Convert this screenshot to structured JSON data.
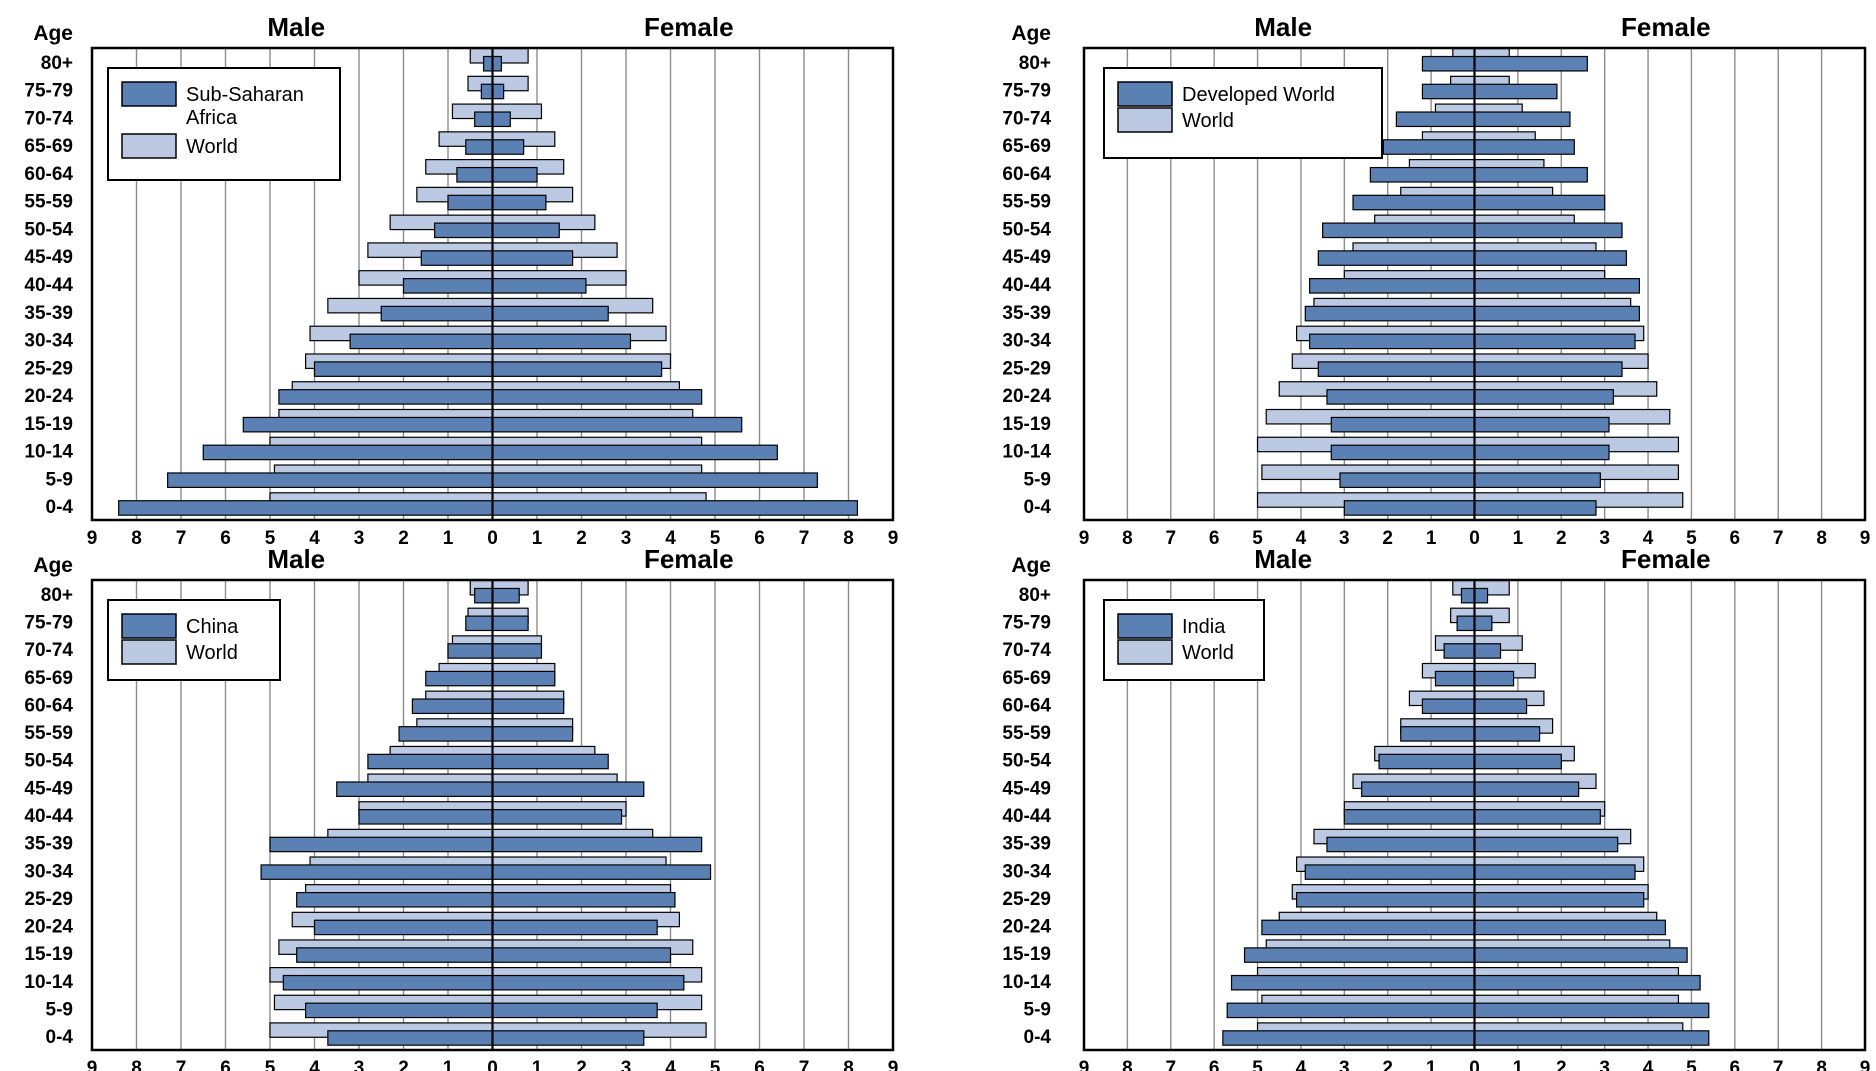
{
  "headers": {
    "male": "Male",
    "female": "Female",
    "age": "Age"
  },
  "age_groups": [
    "80+",
    "75-79",
    "70-74",
    "65-69",
    "60-64",
    "55-59",
    "50-54",
    "45-49",
    "40-44",
    "35-39",
    "30-34",
    "25-29",
    "20-24",
    "15-19",
    "10-14",
    "5-9",
    "0-4"
  ],
  "x_ticks": [
    "9",
    "8",
    "7",
    "6",
    "5",
    "4",
    "3",
    "2",
    "1",
    "0",
    "1",
    "2",
    "3",
    "4",
    "5",
    "6",
    "7",
    "8",
    "9"
  ],
  "colors": {
    "region": "#5b80b4",
    "world": "#bcc9e3",
    "grid": "#8c8c8c",
    "border": "#000000"
  },
  "world": {
    "male": [
      0.5,
      0.55,
      0.9,
      1.2,
      1.5,
      1.7,
      2.3,
      2.8,
      3.0,
      3.7,
      4.1,
      4.2,
      4.5,
      4.8,
      5.0,
      4.9,
      5.0
    ],
    "female": [
      0.8,
      0.8,
      1.1,
      1.4,
      1.6,
      1.8,
      2.3,
      2.8,
      3.0,
      3.6,
      3.9,
      4.0,
      4.2,
      4.5,
      4.7,
      4.7,
      4.8
    ]
  },
  "chart_data": [
    {
      "type": "bar",
      "legend": [
        "Sub-Saharan Africa",
        "World"
      ],
      "categories": [
        "80+",
        "75-79",
        "70-74",
        "65-69",
        "60-64",
        "55-59",
        "50-54",
        "45-49",
        "40-44",
        "35-39",
        "30-34",
        "25-29",
        "20-24",
        "15-19",
        "10-14",
        "5-9",
        "0-4"
      ],
      "xlim": [
        -9,
        9
      ],
      "series": [
        {
          "name": "Sub-Saharan Africa",
          "male": [
            0.2,
            0.25,
            0.4,
            0.6,
            0.8,
            1.0,
            1.3,
            1.6,
            2.0,
            2.5,
            3.2,
            4.0,
            4.8,
            5.6,
            6.5,
            7.3,
            8.4
          ],
          "female": [
            0.2,
            0.25,
            0.4,
            0.7,
            1.0,
            1.2,
            1.5,
            1.8,
            2.1,
            2.6,
            3.1,
            3.8,
            4.7,
            5.6,
            6.4,
            7.3,
            8.2
          ]
        },
        {
          "name": "World"
        }
      ]
    },
    {
      "type": "bar",
      "legend": [
        "Developed World",
        "World"
      ],
      "categories": [
        "80+",
        "75-79",
        "70-74",
        "65-69",
        "60-64",
        "55-59",
        "50-54",
        "45-49",
        "40-44",
        "35-39",
        "30-34",
        "25-29",
        "20-24",
        "15-19",
        "10-14",
        "5-9",
        "0-4"
      ],
      "xlim": [
        -9,
        9
      ],
      "series": [
        {
          "name": "Developed World",
          "male": [
            1.2,
            1.2,
            1.8,
            2.1,
            2.4,
            2.8,
            3.5,
            3.6,
            3.8,
            3.9,
            3.8,
            3.6,
            3.4,
            3.3,
            3.3,
            3.1,
            3.0
          ],
          "female": [
            2.6,
            1.9,
            2.2,
            2.3,
            2.6,
            3.0,
            3.4,
            3.5,
            3.8,
            3.8,
            3.7,
            3.4,
            3.2,
            3.1,
            3.1,
            2.9,
            2.8
          ]
        },
        {
          "name": "World"
        }
      ]
    },
    {
      "type": "bar",
      "legend": [
        "China",
        "World"
      ],
      "categories": [
        "80+",
        "75-79",
        "70-74",
        "65-69",
        "60-64",
        "55-59",
        "50-54",
        "45-49",
        "40-44",
        "35-39",
        "30-34",
        "25-29",
        "20-24",
        "15-19",
        "10-14",
        "5-9",
        "0-4"
      ],
      "xlim": [
        -9,
        9
      ],
      "series": [
        {
          "name": "China",
          "male": [
            0.4,
            0.6,
            1.0,
            1.5,
            1.8,
            2.1,
            2.8,
            3.5,
            3.0,
            5.0,
            5.2,
            4.4,
            4.0,
            4.4,
            4.7,
            4.2,
            3.7
          ],
          "female": [
            0.6,
            0.8,
            1.1,
            1.4,
            1.6,
            1.8,
            2.6,
            3.4,
            2.9,
            4.7,
            4.9,
            4.1,
            3.7,
            4.0,
            4.3,
            3.7,
            3.4
          ]
        },
        {
          "name": "World"
        }
      ]
    },
    {
      "type": "bar",
      "legend": [
        "India",
        "World"
      ],
      "categories": [
        "80+",
        "75-79",
        "70-74",
        "65-69",
        "60-64",
        "55-59",
        "50-54",
        "45-49",
        "40-44",
        "35-39",
        "30-34",
        "25-29",
        "20-24",
        "15-19",
        "10-14",
        "5-9",
        "0-4"
      ],
      "xlim": [
        -9,
        9
      ],
      "series": [
        {
          "name": "India",
          "male": [
            0.3,
            0.4,
            0.7,
            0.9,
            1.2,
            1.7,
            2.2,
            2.6,
            3.0,
            3.4,
            3.9,
            4.1,
            4.9,
            5.3,
            5.6,
            5.7,
            5.8
          ],
          "female": [
            0.3,
            0.4,
            0.6,
            0.9,
            1.2,
            1.5,
            2.0,
            2.4,
            2.9,
            3.3,
            3.7,
            3.9,
            4.4,
            4.9,
            5.2,
            5.4,
            5.4
          ]
        },
        {
          "name": "World"
        }
      ]
    }
  ]
}
